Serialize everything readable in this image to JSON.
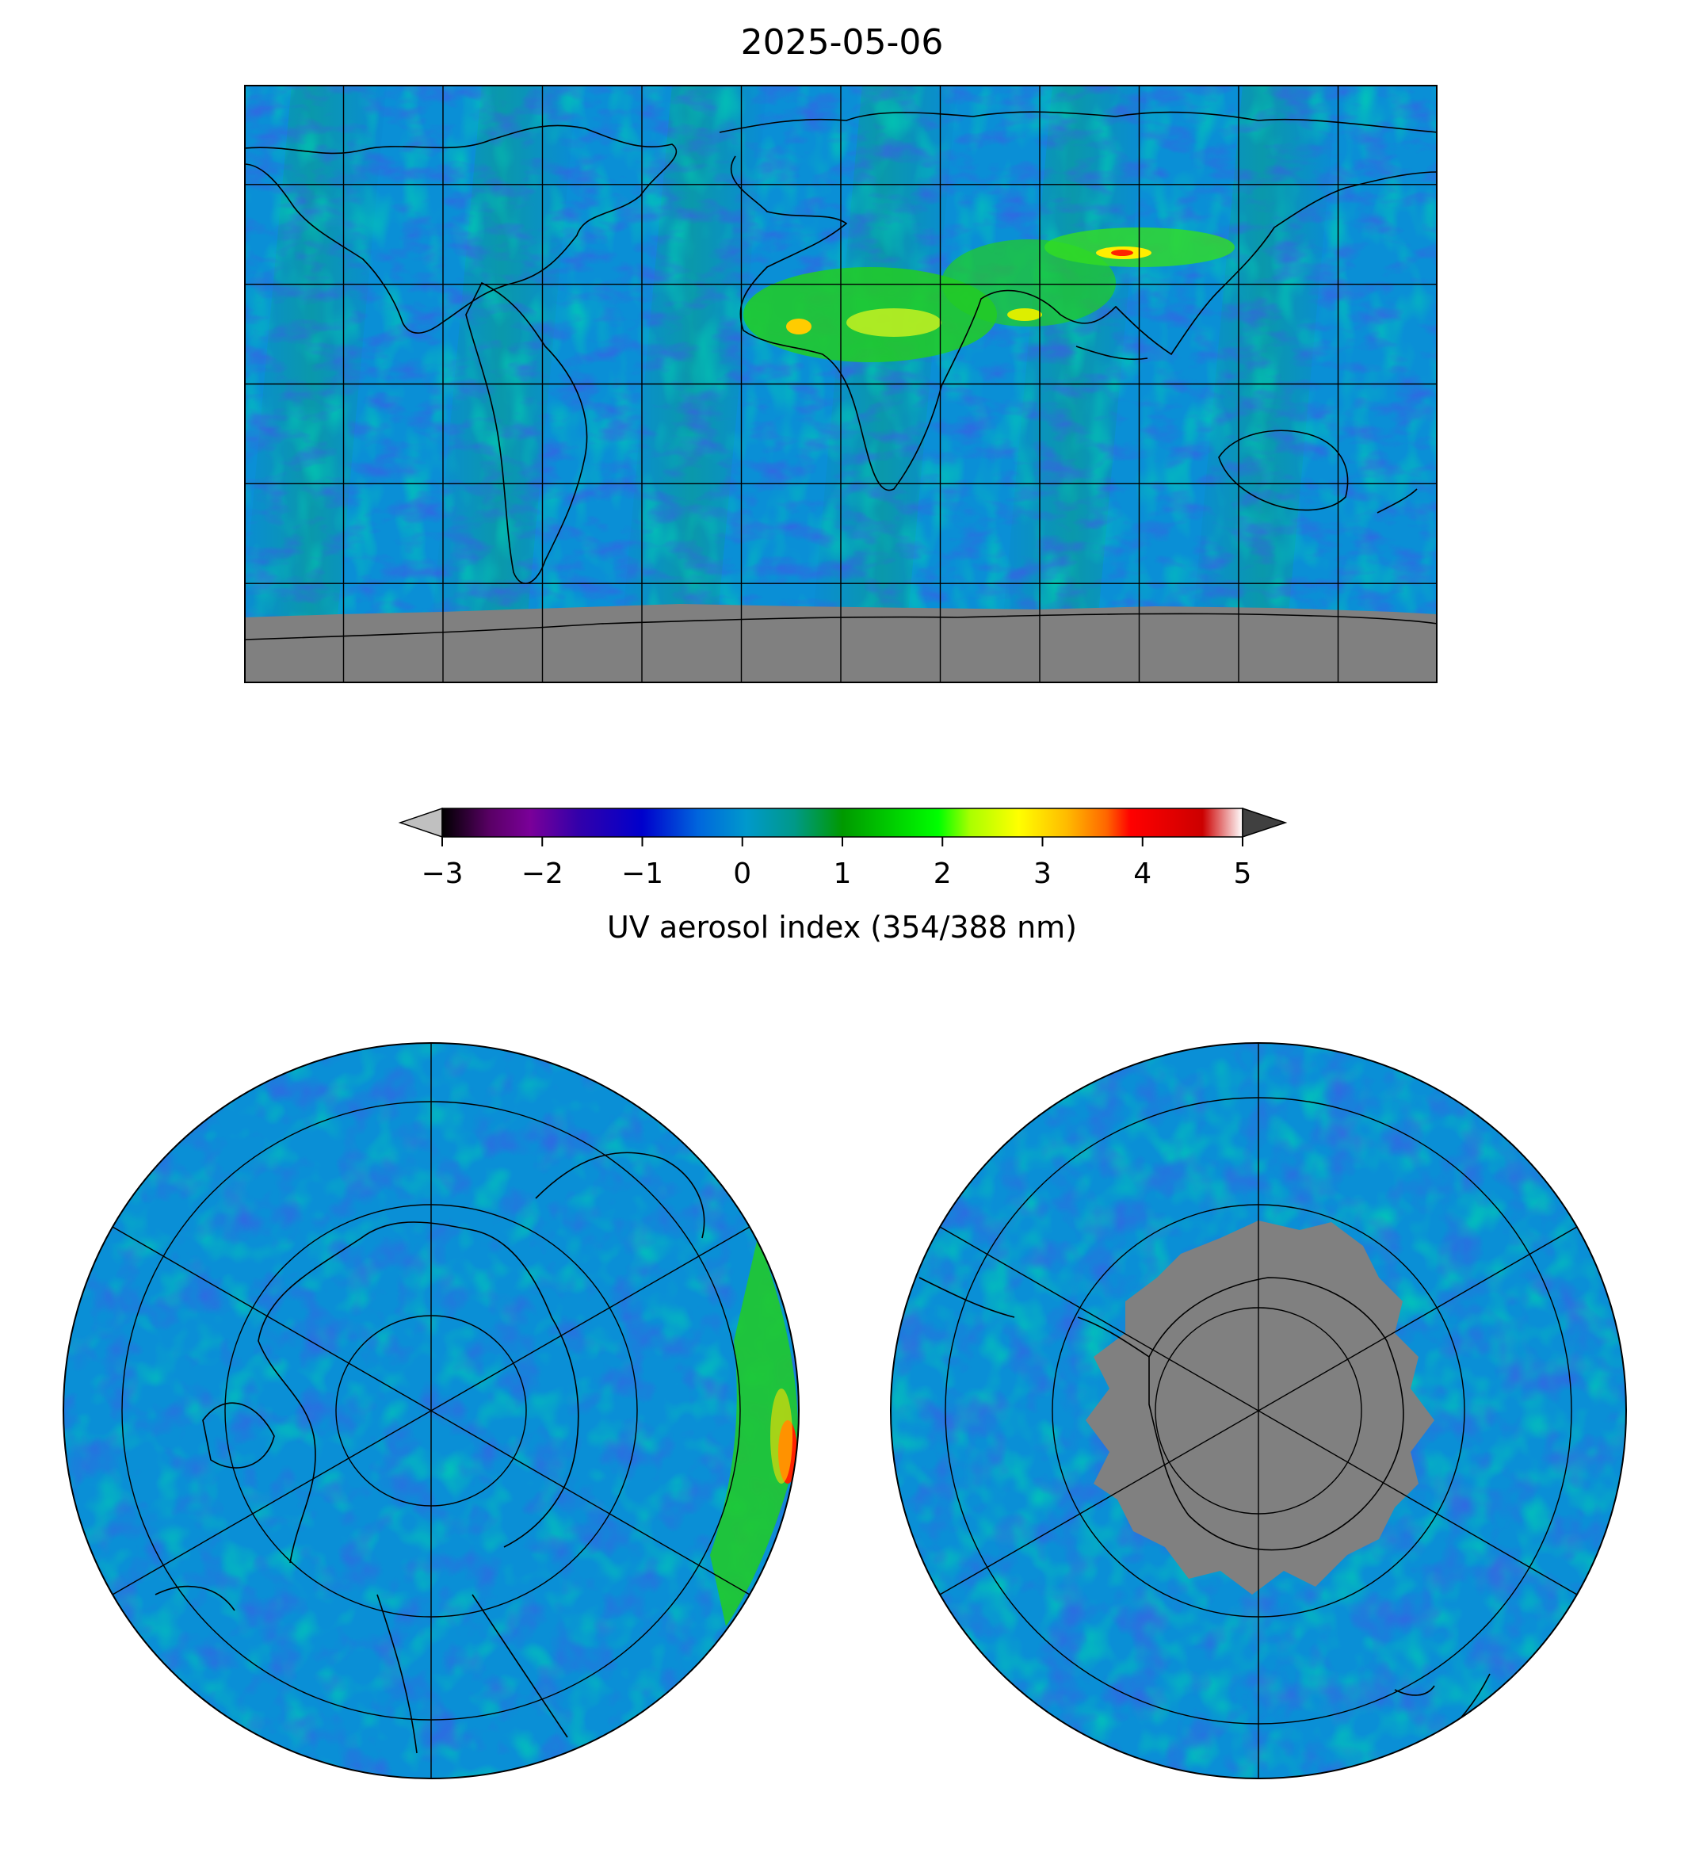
{
  "title": "2025-05-06",
  "colorbar": {
    "label": "UV aerosol index (354/388 nm)",
    "ticks": [
      "−3",
      "−2",
      "−1",
      "0",
      "1",
      "2",
      "3",
      "4",
      "5"
    ],
    "range": [
      -3,
      5
    ],
    "extend": "both",
    "colormap": [
      "#000000",
      "#5a0066",
      "#7a0099",
      "#3300aa",
      "#0000cc",
      "#0066dd",
      "#0099cc",
      "#009988",
      "#009900",
      "#00cc00",
      "#00ff00",
      "#aaff00",
      "#ffff00",
      "#ffbb00",
      "#ff6600",
      "#ff0000",
      "#dd0000",
      "#cc0000",
      "#ffffff"
    ],
    "under_color": "#c0c0c0",
    "over_color": "#404040"
  },
  "maps": [
    {
      "name": "global",
      "projection": "plate carree",
      "gridlines": "every 30° longitude / latitude",
      "missing_color": "#808080",
      "missing_region": "Antarctica"
    },
    {
      "name": "north-polar",
      "projection": "north polar stereographic",
      "missing_color": "#808080"
    },
    {
      "name": "south-polar",
      "projection": "south polar stereographic",
      "missing_color": "#808080",
      "missing_region": "Antarctica"
    }
  ],
  "colors": {
    "ocean_field": "#0a8fd6",
    "low_field": "#1a1ad0",
    "mid_field": "#00a070",
    "dust_field": "#22dd22",
    "no_data": "#808080",
    "coastline": "#000000"
  }
}
